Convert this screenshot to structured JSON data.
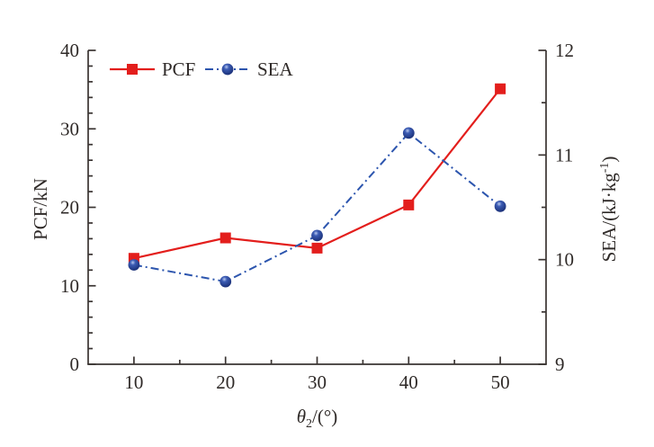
{
  "figure": {
    "background": "#ffffff",
    "axis_color": "#3a3432",
    "text_color": "#2f2a28"
  },
  "chart_data": {
    "type": "line",
    "title": "",
    "x": [
      10,
      20,
      30,
      40,
      50
    ],
    "xlabel": "θ2/(°)",
    "xlabel_parts": {
      "symbol": "θ",
      "subscript": "2",
      "suffix": "/(°)"
    },
    "xlim": [
      5,
      55
    ],
    "x_major_ticks": [
      10,
      20,
      30,
      40,
      50
    ],
    "x_minor_ticks": [
      15,
      25,
      35,
      45
    ],
    "grid": false,
    "legend_position": "top-left-inside",
    "axes": {
      "left": {
        "label": "PCF/kN",
        "lim": [
          0,
          40
        ],
        "major_ticks": [
          0,
          10,
          20,
          30,
          40
        ],
        "minor_step": 2
      },
      "right": {
        "label": "SEA/(kJ·kg−1)",
        "label_parts": {
          "prefix": "SEA/(kJ·kg",
          "superscript": "-1",
          "suffix": ")"
        },
        "lim": [
          9,
          12
        ],
        "major_ticks": [
          9,
          10,
          11,
          12
        ],
        "minor_step": 0.5
      }
    },
    "series": [
      {
        "name": "PCF",
        "axis": "left",
        "color": "#e31e1c",
        "line_style": "solid",
        "marker": "square",
        "values": [
          13.5,
          16.1,
          14.8,
          20.3,
          35.1
        ]
      },
      {
        "name": "SEA",
        "axis": "right",
        "color": "#2c55ae",
        "marker_color": "#1d3a8f",
        "line_style": "dash-dot",
        "marker": "circle",
        "values": [
          9.95,
          9.79,
          10.23,
          11.21,
          10.51
        ]
      }
    ]
  }
}
